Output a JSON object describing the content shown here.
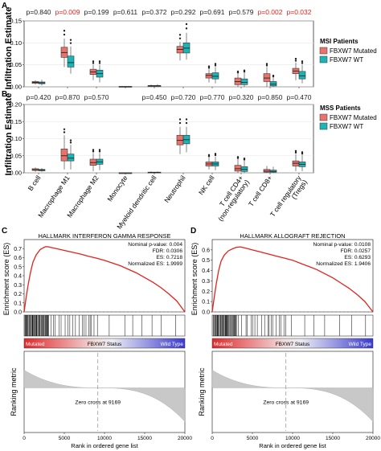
{
  "colors": {
    "mutated": "#e8736c",
    "wt": "#1bb5b8",
    "sig": "#e8231d",
    "curve": "#e0231c",
    "grid": "#e6e6e6"
  },
  "panel_a": {
    "letter": "A",
    "pvalues": [
      "p=0.840",
      "p=0.009",
      "p=0.199",
      "p=0.611",
      "p=0.372",
      "p=0.292",
      "p=0.691",
      "p=0.579",
      "p=0.002",
      "p=0.032"
    ],
    "legend_title": "MSI Patients",
    "legend": [
      "FBXW7 Mutated",
      "FBXW7 WT"
    ]
  },
  "panel_b": {
    "letter": "B",
    "pvalues": [
      "p=0.420",
      "p=0.870",
      "p=0.570",
      "",
      "p=0.450",
      "p=0.720",
      "p=0.770",
      "p=0.320",
      "p=0.850",
      "p=0.470"
    ],
    "legend_title": "MSS Patients",
    "legend": [
      "FBXW7 Mutated",
      "FBXW7 WT"
    ]
  },
  "ylabel": "Infiltration Estimate",
  "categories": [
    "B cell",
    "Macrophage M1",
    "Macrophage M2",
    "Monocyte",
    "Myeloid dendritic cell",
    "Neutrophil",
    "NK cell",
    "T cell CD4+ (non-regulatory)",
    "T cell CD8+",
    "T cell regulatory (Tregs)"
  ],
  "panel_c": {
    "letter": "C",
    "title": "HALLMARK INTERFERON GAMMA RESPONSE",
    "stats": [
      "Nominal p-value: 0.004",
      "FDR: 0.0306",
      "ES: 0.7218",
      "Normalized ES: 1.9999"
    ]
  },
  "panel_d": {
    "letter": "D",
    "title": "HALLMARK ALLOGRAFT REJECTION",
    "stats": [
      "Nominal p-value: 0.0108",
      "FDR: 0.0257",
      "ES: 0.6293",
      "Normalized ES: 1.9406"
    ]
  },
  "gsea": {
    "es_label": "Enrichment score (ES)",
    "rank_label": "Ranking metric",
    "xlabel": "Rank in ordered gene list",
    "bar_left": "Mutated",
    "bar_mid": "FBXW7 Status",
    "bar_right": "Wild Type",
    "zero_cross": "Zero cross at 9169"
  },
  "chart_data": [
    {
      "type": "box",
      "title": "MSI Patients",
      "categories": [
        "B cell",
        "Macrophage M1",
        "Macrophage M2",
        "Monocyte",
        "Myeloid dendritic cell",
        "Neutrophil",
        "NK cell",
        "T cell CD4+ (non-regulatory)",
        "T cell CD8+",
        "T cell regulatory (Tregs)"
      ],
      "ylim": [
        0,
        0.15
      ],
      "yticks": [
        0.0,
        0.05,
        0.1,
        0.15
      ],
      "ylabel": "Infiltration Estimate",
      "series": [
        {
          "name": "FBXW7 Mutated",
          "boxes": [
            [
              0.005,
              0.008,
              0.01,
              0.012,
              0.015
            ],
            [
              0.045,
              0.067,
              0.078,
              0.09,
              0.11
            ],
            [
              0.015,
              0.028,
              0.034,
              0.04,
              0.05
            ],
            [
              0.0,
              0.0,
              0.0,
              0.001,
              0.002
            ],
            [
              0.0,
              0.001,
              0.002,
              0.003,
              0.005
            ],
            [
              0.06,
              0.077,
              0.085,
              0.092,
              0.102
            ],
            [
              0.01,
              0.02,
              0.026,
              0.03,
              0.04
            ],
            [
              0.0,
              0.005,
              0.012,
              0.02,
              0.03
            ],
            [
              0.0,
              0.012,
              0.02,
              0.03,
              0.045
            ],
            [
              0.015,
              0.03,
              0.036,
              0.042,
              0.055
            ]
          ]
        },
        {
          "name": "FBXW7 WT",
          "boxes": [
            [
              0.003,
              0.007,
              0.009,
              0.011,
              0.016
            ],
            [
              0.03,
              0.045,
              0.055,
              0.07,
              0.092
            ],
            [
              0.01,
              0.022,
              0.03,
              0.038,
              0.05
            ],
            [
              0.0,
              0.0,
              0.0,
              0.001,
              0.002
            ],
            [
              0.0,
              0.001,
              0.002,
              0.003,
              0.006
            ],
            [
              0.062,
              0.077,
              0.088,
              0.1,
              0.123
            ],
            [
              0.008,
              0.018,
              0.024,
              0.032,
              0.045
            ],
            [
              0.0,
              0.005,
              0.01,
              0.018,
              0.032
            ],
            [
              0.0,
              0.002,
              0.006,
              0.012,
              0.022
            ],
            [
              0.008,
              0.018,
              0.025,
              0.035,
              0.05
            ]
          ]
        }
      ]
    },
    {
      "type": "box",
      "title": "MSS Patients",
      "categories": [
        "B cell",
        "Macrophage M1",
        "Macrophage M2",
        "Monocyte",
        "Myeloid dendritic cell",
        "Neutrophil",
        "NK cell",
        "T cell CD4+ (non-regulatory)",
        "T cell CD8+",
        "T cell regulatory (Tregs)"
      ],
      "ylim": [
        0,
        0.2
      ],
      "yticks": [
        0.0,
        0.05,
        0.1,
        0.15,
        0.2
      ],
      "ylabel": "Infiltration Estimate",
      "series": [
        {
          "name": "FBXW7 Mutated",
          "boxes": [
            [
              0.003,
              0.007,
              0.009,
              0.012,
              0.016
            ],
            [
              0.01,
              0.035,
              0.05,
              0.07,
              0.11
            ],
            [
              0.005,
              0.022,
              0.03,
              0.04,
              0.058
            ],
            [
              0.0,
              0.0,
              0.0,
              0.0,
              0.001
            ],
            [
              0.0,
              0.0,
              0.001,
              0.002,
              0.004
            ],
            [
              0.055,
              0.082,
              0.095,
              0.11,
              0.135
            ],
            [
              0.01,
              0.02,
              0.026,
              0.032,
              0.045
            ],
            [
              0.0,
              0.005,
              0.012,
              0.022,
              0.04
            ],
            [
              0.0,
              0.002,
              0.005,
              0.01,
              0.02
            ],
            [
              0.005,
              0.02,
              0.028,
              0.035,
              0.055
            ]
          ]
        },
        {
          "name": "FBXW7 WT",
          "boxes": [
            [
              0.003,
              0.006,
              0.008,
              0.01,
              0.014
            ],
            [
              0.01,
              0.035,
              0.043,
              0.055,
              0.082
            ],
            [
              0.008,
              0.025,
              0.032,
              0.04,
              0.058
            ],
            [
              0.0,
              0.0,
              0.0,
              0.0,
              0.001
            ],
            [
              0.0,
              0.0,
              0.001,
              0.002,
              0.004
            ],
            [
              0.06,
              0.085,
              0.097,
              0.11,
              0.135
            ],
            [
              0.008,
              0.02,
              0.026,
              0.032,
              0.048
            ],
            [
              0.0,
              0.004,
              0.01,
              0.018,
              0.036
            ],
            [
              0.0,
              0.002,
              0.004,
              0.008,
              0.018
            ],
            [
              0.005,
              0.018,
              0.025,
              0.032,
              0.052
            ]
          ]
        }
      ]
    },
    {
      "type": "line",
      "title": "HALLMARK INTERFERON GAMMA RESPONSE",
      "xlim": [
        0,
        20000
      ],
      "xticks": [
        0,
        5000,
        10000,
        15000,
        20000
      ],
      "ylim": [
        0,
        0.8
      ],
      "yticks": [
        0.0,
        0.1,
        0.2,
        0.3,
        0.4,
        0.5,
        0.6,
        0.7
      ],
      "ylabel": "Enrichment score (ES)",
      "x": [
        0,
        250,
        500,
        800,
        1100,
        1500,
        2000,
        2500,
        2700,
        3000,
        3500,
        4000,
        5000,
        6000,
        7000,
        8000,
        9000,
        10000,
        11000,
        12000,
        13000,
        14000,
        15000,
        16000,
        17000,
        18000,
        19000,
        19500,
        20000
      ],
      "y": [
        0.0,
        0.16,
        0.3,
        0.44,
        0.55,
        0.63,
        0.69,
        0.715,
        0.722,
        0.72,
        0.71,
        0.7,
        0.68,
        0.66,
        0.64,
        0.615,
        0.595,
        0.57,
        0.54,
        0.51,
        0.47,
        0.43,
        0.38,
        0.33,
        0.27,
        0.2,
        0.12,
        0.06,
        0.0
      ],
      "zero_cross": 9169
    },
    {
      "type": "line",
      "title": "HALLMARK ALLOGRAFT REJECTION",
      "xlim": [
        0,
        20000
      ],
      "xticks": [
        0,
        5000,
        10000,
        15000,
        20000
      ],
      "ylim": [
        0,
        0.7
      ],
      "yticks": [
        0.0,
        0.1,
        0.2,
        0.3,
        0.4,
        0.5,
        0.6
      ],
      "ylabel": "Enrichment score (ES)",
      "x": [
        0,
        250,
        500,
        800,
        1100,
        1500,
        2000,
        2500,
        3000,
        3500,
        4000,
        5000,
        6000,
        7000,
        8000,
        9000,
        10000,
        11000,
        12000,
        13000,
        14000,
        15000,
        16000,
        17000,
        18000,
        19000,
        19500,
        20000
      ],
      "y": [
        0.0,
        0.14,
        0.27,
        0.4,
        0.49,
        0.55,
        0.59,
        0.61,
        0.625,
        0.629,
        0.62,
        0.6,
        0.58,
        0.56,
        0.54,
        0.52,
        0.5,
        0.47,
        0.44,
        0.41,
        0.37,
        0.33,
        0.28,
        0.23,
        0.17,
        0.1,
        0.05,
        0.0
      ],
      "zero_cross": 9169
    }
  ]
}
